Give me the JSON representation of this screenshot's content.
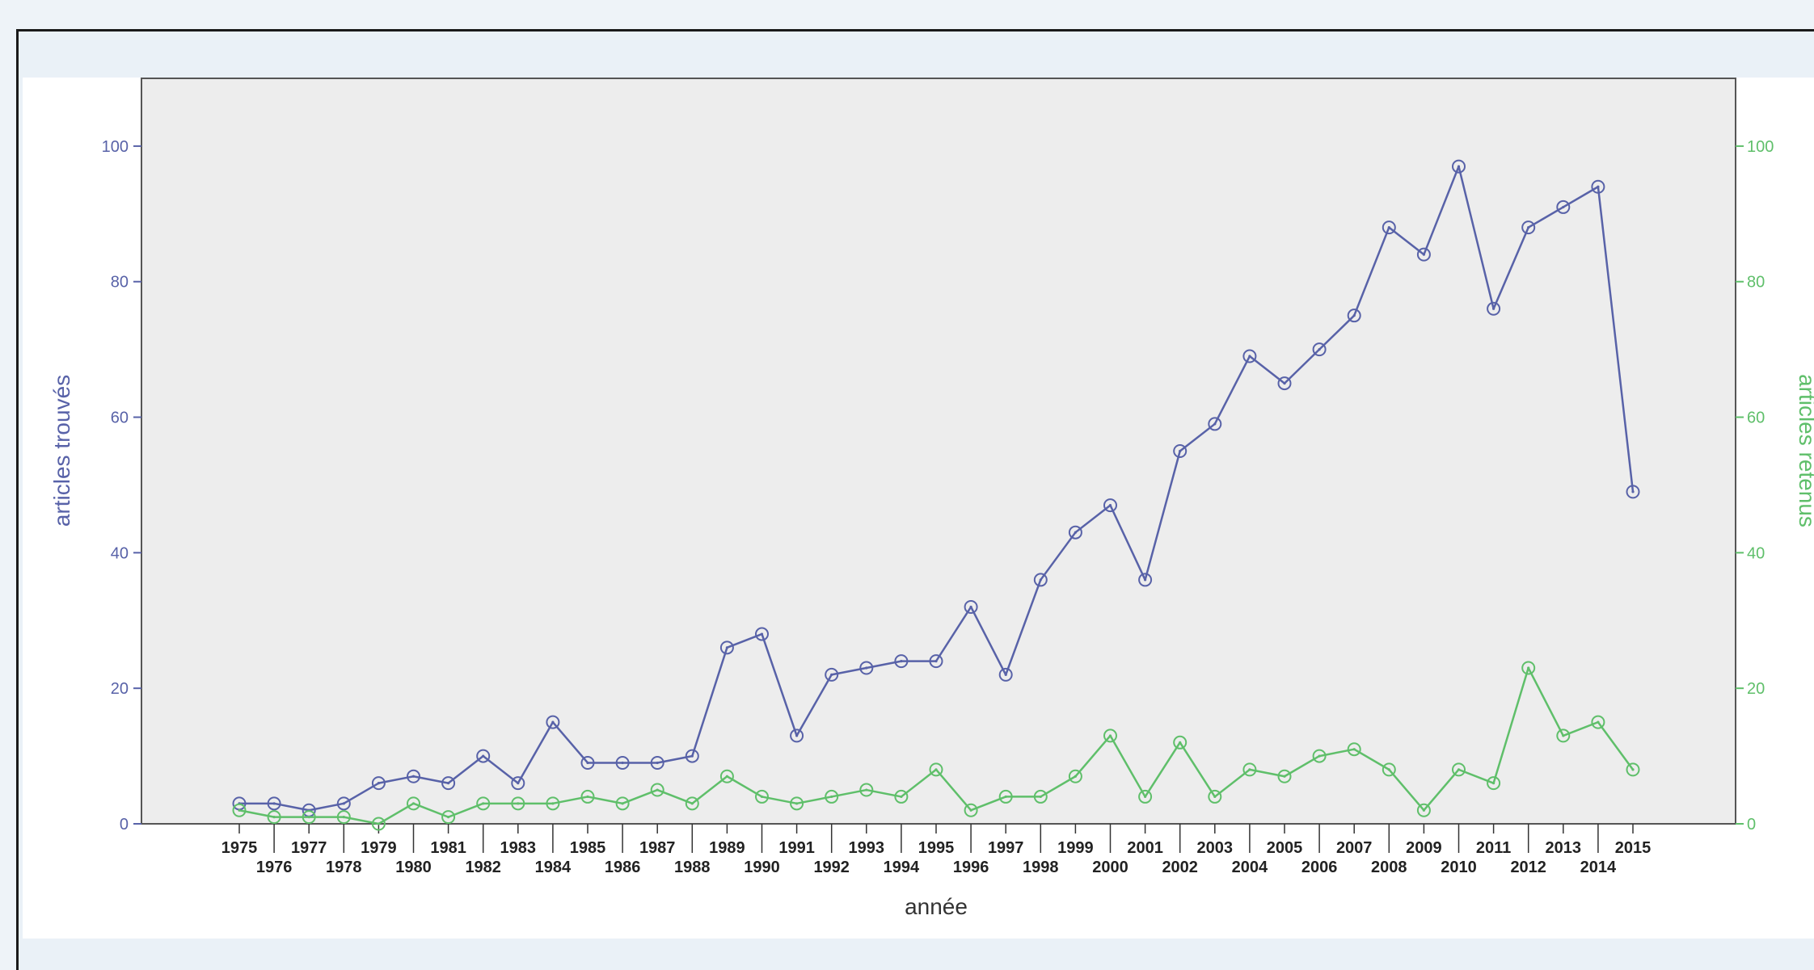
{
  "chart_data": {
    "type": "line",
    "title": "",
    "xlabel": "année",
    "ylabel_left": "articles trouvés",
    "ylabel_right": "articles retenus",
    "ylim_left": [
      0,
      110
    ],
    "ylim_right": [
      0,
      110
    ],
    "yticks": [
      0,
      20,
      40,
      60,
      80,
      100
    ],
    "grid": false,
    "categories": [
      "1975",
      "1976",
      "1977",
      "1978",
      "1979",
      "1980",
      "1981",
      "1982",
      "1983",
      "1984",
      "1985",
      "1986",
      "1987",
      "1988",
      "1989",
      "1990",
      "1991",
      "1992",
      "1993",
      "1994",
      "1995",
      "1996",
      "1997",
      "1998",
      "1999",
      "2000",
      "2001",
      "2002",
      "2003",
      "2004",
      "2005",
      "2006",
      "2007",
      "2008",
      "2009",
      "2010",
      "2011",
      "2012",
      "2013",
      "2014",
      "2015"
    ],
    "series": [
      {
        "axis": "left",
        "color": "#5862a8",
        "values": [
          3,
          3,
          2,
          3,
          6,
          7,
          6,
          10,
          6,
          15,
          9,
          9,
          9,
          10,
          26,
          28,
          13,
          22,
          23,
          24,
          24,
          32,
          22,
          36,
          43,
          47,
          36,
          55,
          59,
          69,
          65,
          70,
          75,
          88,
          84,
          97,
          76,
          88,
          91,
          94,
          49
        ]
      },
      {
        "axis": "right",
        "color": "#5fbf6a",
        "values": [
          2,
          1,
          1,
          1,
          0,
          3,
          1,
          3,
          3,
          3,
          4,
          3,
          5,
          3,
          7,
          4,
          3,
          4,
          5,
          4,
          8,
          2,
          4,
          4,
          7,
          13,
          4,
          12,
          4,
          8,
          7,
          10,
          11,
          8,
          2,
          8,
          6,
          23,
          13,
          15,
          8
        ]
      }
    ]
  }
}
